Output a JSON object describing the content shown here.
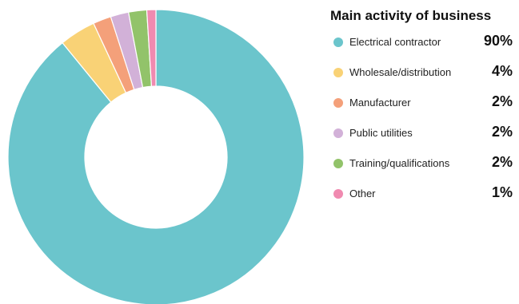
{
  "chart_data": {
    "type": "pie",
    "variant": "donut",
    "title": "Main activity of business",
    "legend_position": "right",
    "slices": [
      {
        "label": "Electrical contractor",
        "value": 90,
        "display": "90%",
        "color": "#6bc5cc"
      },
      {
        "label": "Wholesale/distribution",
        "value": 4,
        "display": "4%",
        "color": "#f9d276"
      },
      {
        "label": "Manufacturer",
        "value": 2,
        "display": "2%",
        "color": "#f4a07a"
      },
      {
        "label": "Public utilities",
        "value": 2,
        "display": "2%",
        "color": "#d2b1d8"
      },
      {
        "label": "Training/qualifications",
        "value": 2,
        "display": "2%",
        "color": "#92c36a"
      },
      {
        "label": "Other",
        "value": 1,
        "display": "1%",
        "color": "#f08ab0"
      }
    ]
  }
}
